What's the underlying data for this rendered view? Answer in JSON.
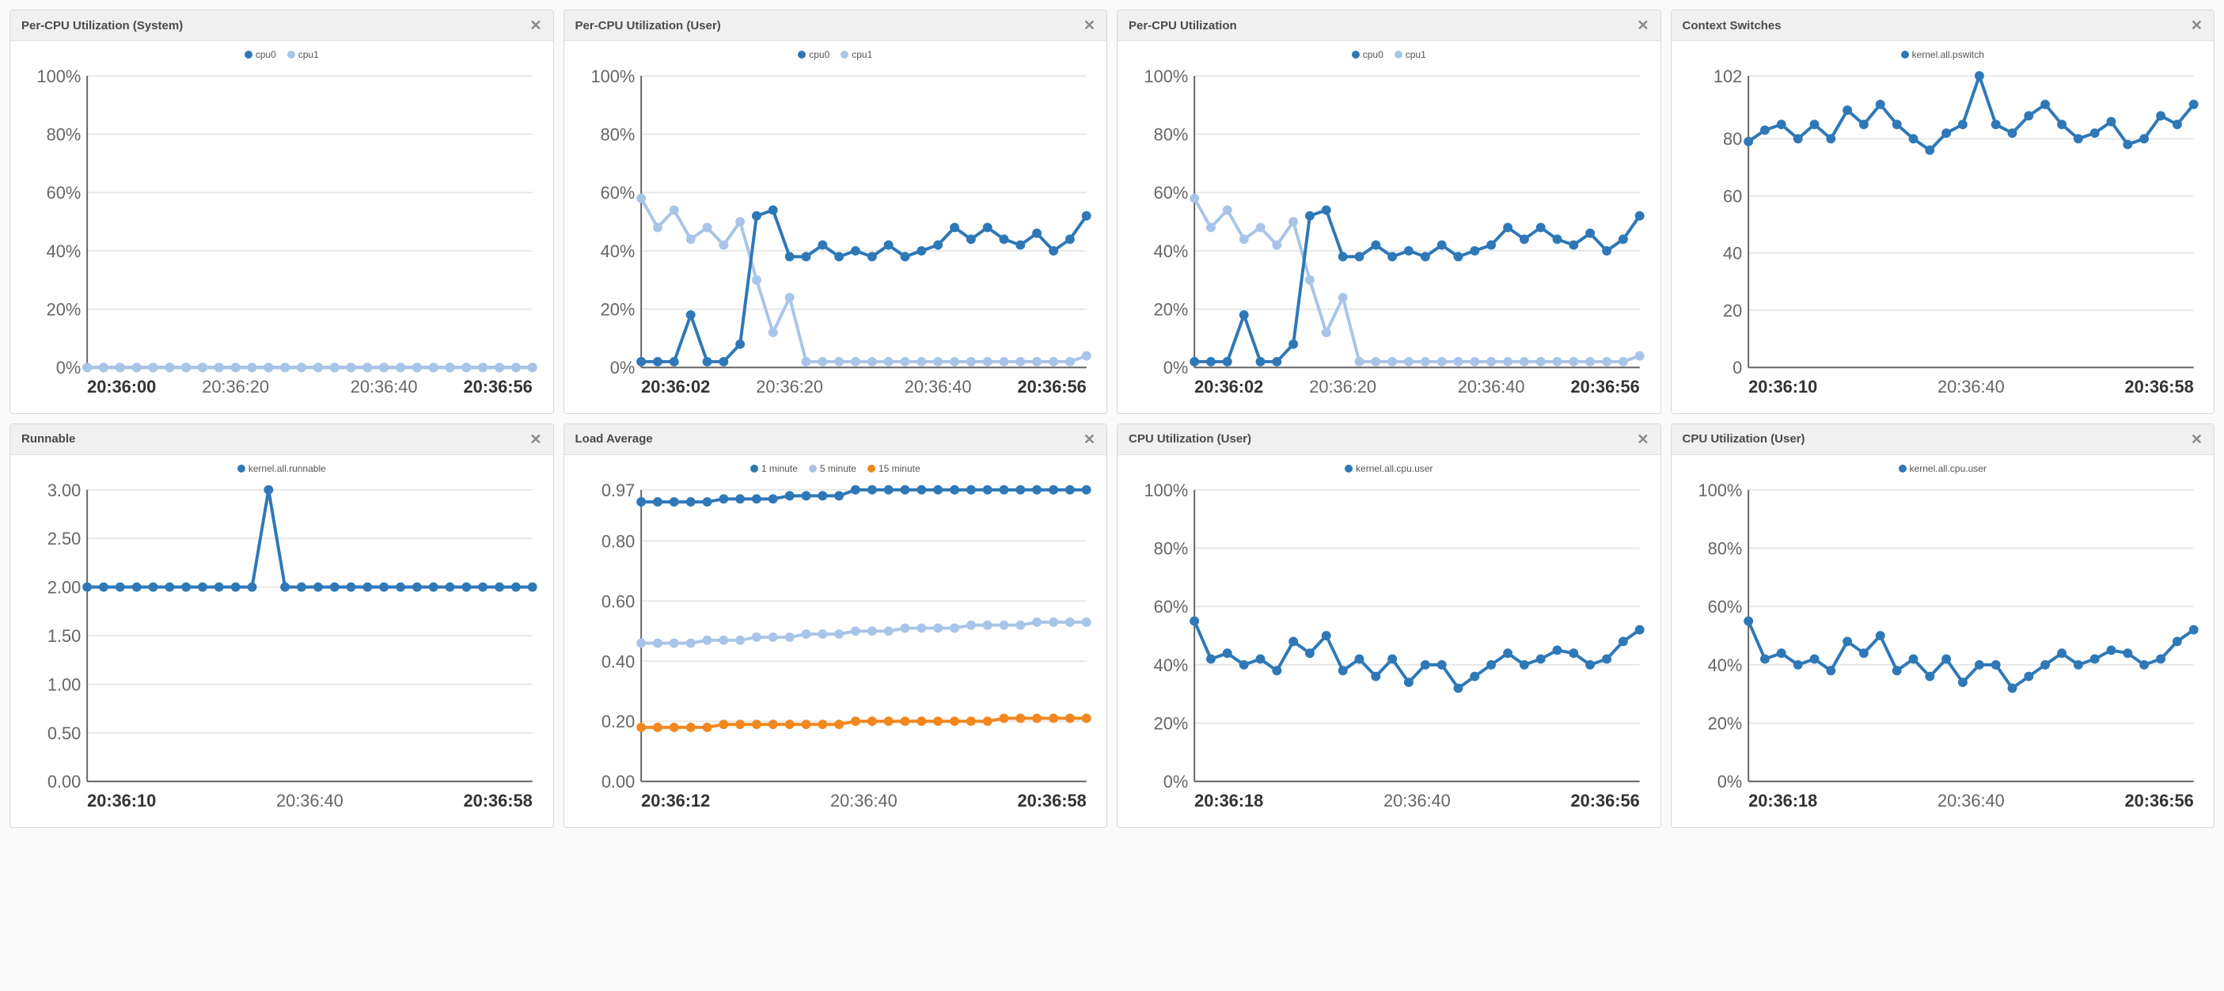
{
  "colors": {
    "cpu0": "#2e78b7",
    "cpu1": "#a8c5e8",
    "series1": "#2e78b7",
    "series_light": "#a8c5e8",
    "orange": "#f2871f",
    "grid": "#e8e8e8",
    "axis": "#666666"
  },
  "panels": [
    {
      "id": "p0",
      "title": "Per-CPU Utilization (System)",
      "legend": [
        {
          "label": "cpu0",
          "color": "#2e78b7"
        },
        {
          "label": "cpu1",
          "color": "#a8c5e8"
        }
      ],
      "y": {
        "min": 0,
        "max": 100,
        "step": 20,
        "suffix": "%"
      },
      "x": {
        "ticks": [
          "20:36:00",
          "20:36:20",
          "20:36:40",
          "20:36:56"
        ],
        "bold": [
          0,
          3
        ]
      },
      "series": [
        {
          "color": "#2e78b7",
          "points": [
            0,
            0,
            0,
            0,
            0,
            0,
            0,
            0,
            0,
            0,
            0,
            0,
            0,
            0,
            0,
            0,
            0,
            0,
            0,
            0,
            0,
            0,
            0,
            0,
            0,
            0,
            0,
            0
          ]
        },
        {
          "color": "#a8c5e8",
          "points": [
            0,
            0,
            0,
            0,
            0,
            0,
            0,
            0,
            0,
            0,
            0,
            0,
            0,
            0,
            0,
            0,
            0,
            0,
            0,
            0,
            0,
            0,
            0,
            0,
            0,
            0,
            0,
            0
          ]
        }
      ]
    },
    {
      "id": "p1",
      "title": "Per-CPU Utilization (User)",
      "legend": [
        {
          "label": "cpu0",
          "color": "#2e78b7"
        },
        {
          "label": "cpu1",
          "color": "#a8c5e8"
        }
      ],
      "y": {
        "min": 0,
        "max": 100,
        "step": 20,
        "suffix": "%"
      },
      "x": {
        "ticks": [
          "20:36:02",
          "20:36:20",
          "20:36:40",
          "20:36:56"
        ],
        "bold": [
          0,
          3
        ]
      },
      "series": [
        {
          "color": "#a8c5e8",
          "points": [
            58,
            48,
            54,
            44,
            48,
            42,
            50,
            30,
            12,
            24,
            2,
            2,
            2,
            2,
            2,
            2,
            2,
            2,
            2,
            2,
            2,
            2,
            2,
            2,
            2,
            2,
            2,
            4
          ]
        },
        {
          "color": "#2e78b7",
          "points": [
            2,
            2,
            2,
            18,
            2,
            2,
            8,
            52,
            54,
            38,
            38,
            42,
            38,
            40,
            38,
            42,
            38,
            40,
            42,
            48,
            44,
            48,
            44,
            42,
            46,
            40,
            44,
            52
          ]
        }
      ]
    },
    {
      "id": "p2",
      "title": "Per-CPU Utilization",
      "legend": [
        {
          "label": "cpu0",
          "color": "#2e78b7"
        },
        {
          "label": "cpu1",
          "color": "#a8c5e8"
        }
      ],
      "y": {
        "min": 0,
        "max": 100,
        "step": 20,
        "suffix": "%"
      },
      "x": {
        "ticks": [
          "20:36:02",
          "20:36:20",
          "20:36:40",
          "20:36:56"
        ],
        "bold": [
          0,
          3
        ]
      },
      "series": [
        {
          "color": "#a8c5e8",
          "points": [
            58,
            48,
            54,
            44,
            48,
            42,
            50,
            30,
            12,
            24,
            2,
            2,
            2,
            2,
            2,
            2,
            2,
            2,
            2,
            2,
            2,
            2,
            2,
            2,
            2,
            2,
            2,
            4
          ]
        },
        {
          "color": "#2e78b7",
          "points": [
            2,
            2,
            2,
            18,
            2,
            2,
            8,
            52,
            54,
            38,
            38,
            42,
            38,
            40,
            38,
            42,
            38,
            40,
            42,
            48,
            44,
            48,
            44,
            42,
            46,
            40,
            44,
            52
          ]
        }
      ]
    },
    {
      "id": "p3",
      "title": "Context Switches",
      "legend": [
        {
          "label": "kernel.all.pswitch",
          "color": "#2e78b7"
        }
      ],
      "y": {
        "min": 0,
        "max": 102,
        "ticks": [
          0,
          20,
          40,
          60,
          80,
          102
        ],
        "suffix": ""
      },
      "x": {
        "ticks": [
          "20:36:10",
          "20:36:40",
          "20:36:58"
        ],
        "bold": [
          0,
          2
        ]
      },
      "series": [
        {
          "color": "#2e78b7",
          "points": [
            79,
            83,
            85,
            80,
            85,
            80,
            90,
            85,
            92,
            85,
            80,
            76,
            82,
            85,
            102,
            85,
            82,
            88,
            92,
            85,
            80,
            82,
            86,
            78,
            80,
            88,
            85,
            92
          ]
        }
      ]
    },
    {
      "id": "p4",
      "title": "Runnable",
      "legend": [
        {
          "label": "kernel.all.runnable",
          "color": "#2e78b7"
        }
      ],
      "y": {
        "min": 0,
        "max": 3,
        "step": 0.5,
        "decimals": 2,
        "suffix": ""
      },
      "x": {
        "ticks": [
          "20:36:10",
          "20:36:40",
          "20:36:58"
        ],
        "bold": [
          0,
          2
        ]
      },
      "series": [
        {
          "color": "#2e78b7",
          "points": [
            2,
            2,
            2,
            2,
            2,
            2,
            2,
            2,
            2,
            2,
            2,
            3,
            2,
            2,
            2,
            2,
            2,
            2,
            2,
            2,
            2,
            2,
            2,
            2,
            2,
            2,
            2,
            2
          ]
        }
      ]
    },
    {
      "id": "p5",
      "title": "Load Average",
      "legend": [
        {
          "label": "1 minute",
          "color": "#2e78b7"
        },
        {
          "label": "5 minute",
          "color": "#a8c5e8"
        },
        {
          "label": "15 minute",
          "color": "#f2871f"
        }
      ],
      "y": {
        "min": 0,
        "max": 0.97,
        "ticks": [
          0,
          0.2,
          0.4,
          0.6,
          0.8,
          0.97
        ],
        "decimals": 2,
        "suffix": ""
      },
      "x": {
        "ticks": [
          "20:36:12",
          "20:36:40",
          "20:36:58"
        ],
        "bold": [
          0,
          2
        ]
      },
      "series": [
        {
          "color": "#2e78b7",
          "points": [
            0.93,
            0.93,
            0.93,
            0.93,
            0.93,
            0.94,
            0.94,
            0.94,
            0.94,
            0.95,
            0.95,
            0.95,
            0.95,
            0.97,
            0.97,
            0.97,
            0.97,
            0.97,
            0.97,
            0.97,
            0.97,
            0.97,
            0.97,
            0.97,
            0.97,
            0.97,
            0.97,
            0.97
          ]
        },
        {
          "color": "#a8c5e8",
          "points": [
            0.46,
            0.46,
            0.46,
            0.46,
            0.47,
            0.47,
            0.47,
            0.48,
            0.48,
            0.48,
            0.49,
            0.49,
            0.49,
            0.5,
            0.5,
            0.5,
            0.51,
            0.51,
            0.51,
            0.51,
            0.52,
            0.52,
            0.52,
            0.52,
            0.53,
            0.53,
            0.53,
            0.53
          ]
        },
        {
          "color": "#f2871f",
          "points": [
            0.18,
            0.18,
            0.18,
            0.18,
            0.18,
            0.19,
            0.19,
            0.19,
            0.19,
            0.19,
            0.19,
            0.19,
            0.19,
            0.2,
            0.2,
            0.2,
            0.2,
            0.2,
            0.2,
            0.2,
            0.2,
            0.2,
            0.21,
            0.21,
            0.21,
            0.21,
            0.21,
            0.21
          ]
        }
      ]
    },
    {
      "id": "p6",
      "title": "CPU Utilization (User)",
      "legend": [
        {
          "label": "kernel.all.cpu.user",
          "color": "#2e78b7"
        }
      ],
      "y": {
        "min": 0,
        "max": 100,
        "step": 20,
        "suffix": "%"
      },
      "x": {
        "ticks": [
          "20:36:18",
          "20:36:40",
          "20:36:56"
        ],
        "bold": [
          0,
          2
        ]
      },
      "series": [
        {
          "color": "#2e78b7",
          "points": [
            55,
            42,
            44,
            40,
            42,
            38,
            48,
            44,
            50,
            38,
            42,
            36,
            42,
            34,
            40,
            40,
            32,
            36,
            40,
            44,
            40,
            42,
            45,
            44,
            40,
            42,
            48,
            52
          ]
        }
      ]
    },
    {
      "id": "p7",
      "title": "CPU Utilization (User)",
      "legend": [
        {
          "label": "kernel.all.cpu.user",
          "color": "#2e78b7"
        }
      ],
      "y": {
        "min": 0,
        "max": 100,
        "step": 20,
        "suffix": "%"
      },
      "x": {
        "ticks": [
          "20:36:18",
          "20:36:40",
          "20:36:56"
        ],
        "bold": [
          0,
          2
        ]
      },
      "series": [
        {
          "color": "#2e78b7",
          "points": [
            55,
            42,
            44,
            40,
            42,
            38,
            48,
            44,
            50,
            38,
            42,
            36,
            42,
            34,
            40,
            40,
            32,
            36,
            40,
            44,
            40,
            42,
            45,
            44,
            40,
            42,
            48,
            52
          ]
        }
      ]
    }
  ]
}
